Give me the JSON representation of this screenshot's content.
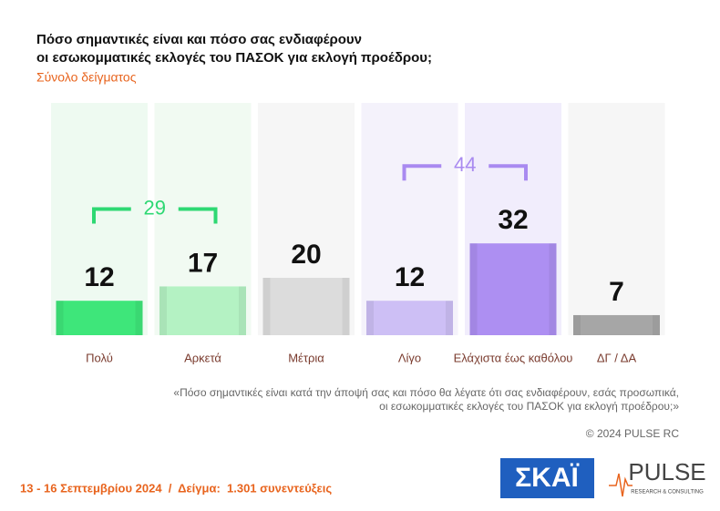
{
  "chart_data": {
    "type": "bar",
    "title": [
      "Πόσο σημαντικές είναι και πόσο σας ενδιαφέρουν",
      "οι εσωκομματικές εκλογές του ΠΑΣΟΚ για εκλογή προέδρου;"
    ],
    "subtitle": "Σύνολο δείγματος",
    "categories": [
      "Πολύ",
      "Αρκετά",
      "Μέτρια",
      "Λίγο",
      "Ελάχιστα έως καθόλου",
      "ΔΓ / ΔΑ"
    ],
    "values": [
      12,
      17,
      20,
      12,
      32,
      7
    ],
    "colors": [
      "#3ee67a",
      "#b4f2c3",
      "#dcdcdc",
      "#cdbff5",
      "#ad8ff2",
      "#a6a6a6"
    ],
    "column_colors": [
      "#eefaf1",
      "#f1faf2",
      "#f6f6f6",
      "#f4f2fb",
      "#f1edfc",
      "#f6f6f6"
    ],
    "brackets": [
      {
        "categories": [
          "Πολύ",
          "Αρκετά"
        ],
        "value": 29,
        "color": "#2ed873"
      },
      {
        "categories": [
          "Λίγο",
          "Ελάχιστα έως καθόλου"
        ],
        "value": 44,
        "color": "#a98af0"
      }
    ],
    "note": [
      "«Πόσο σημαντικές είναι κατά την άποψή σας και πόσο θα λέγατε ότι σας ενδιαφέρουν, εσάς προσωπικά,",
      "οι εσωκομματικές εκλογές του ΠΑΣΟΚ για εκλογή προέδρου;»"
    ],
    "copyright": "© 2024 PULSE RC",
    "footer": "13 - 16 Σεπτεμβρίου 2024  /  Δείγμα:  1.301 συνεντεύξεις",
    "logos": {
      "skai": "ΣΚΑΪ",
      "pulse": "PULSE",
      "pulse_sub": "RESEARCH & CONSULTING"
    }
  }
}
